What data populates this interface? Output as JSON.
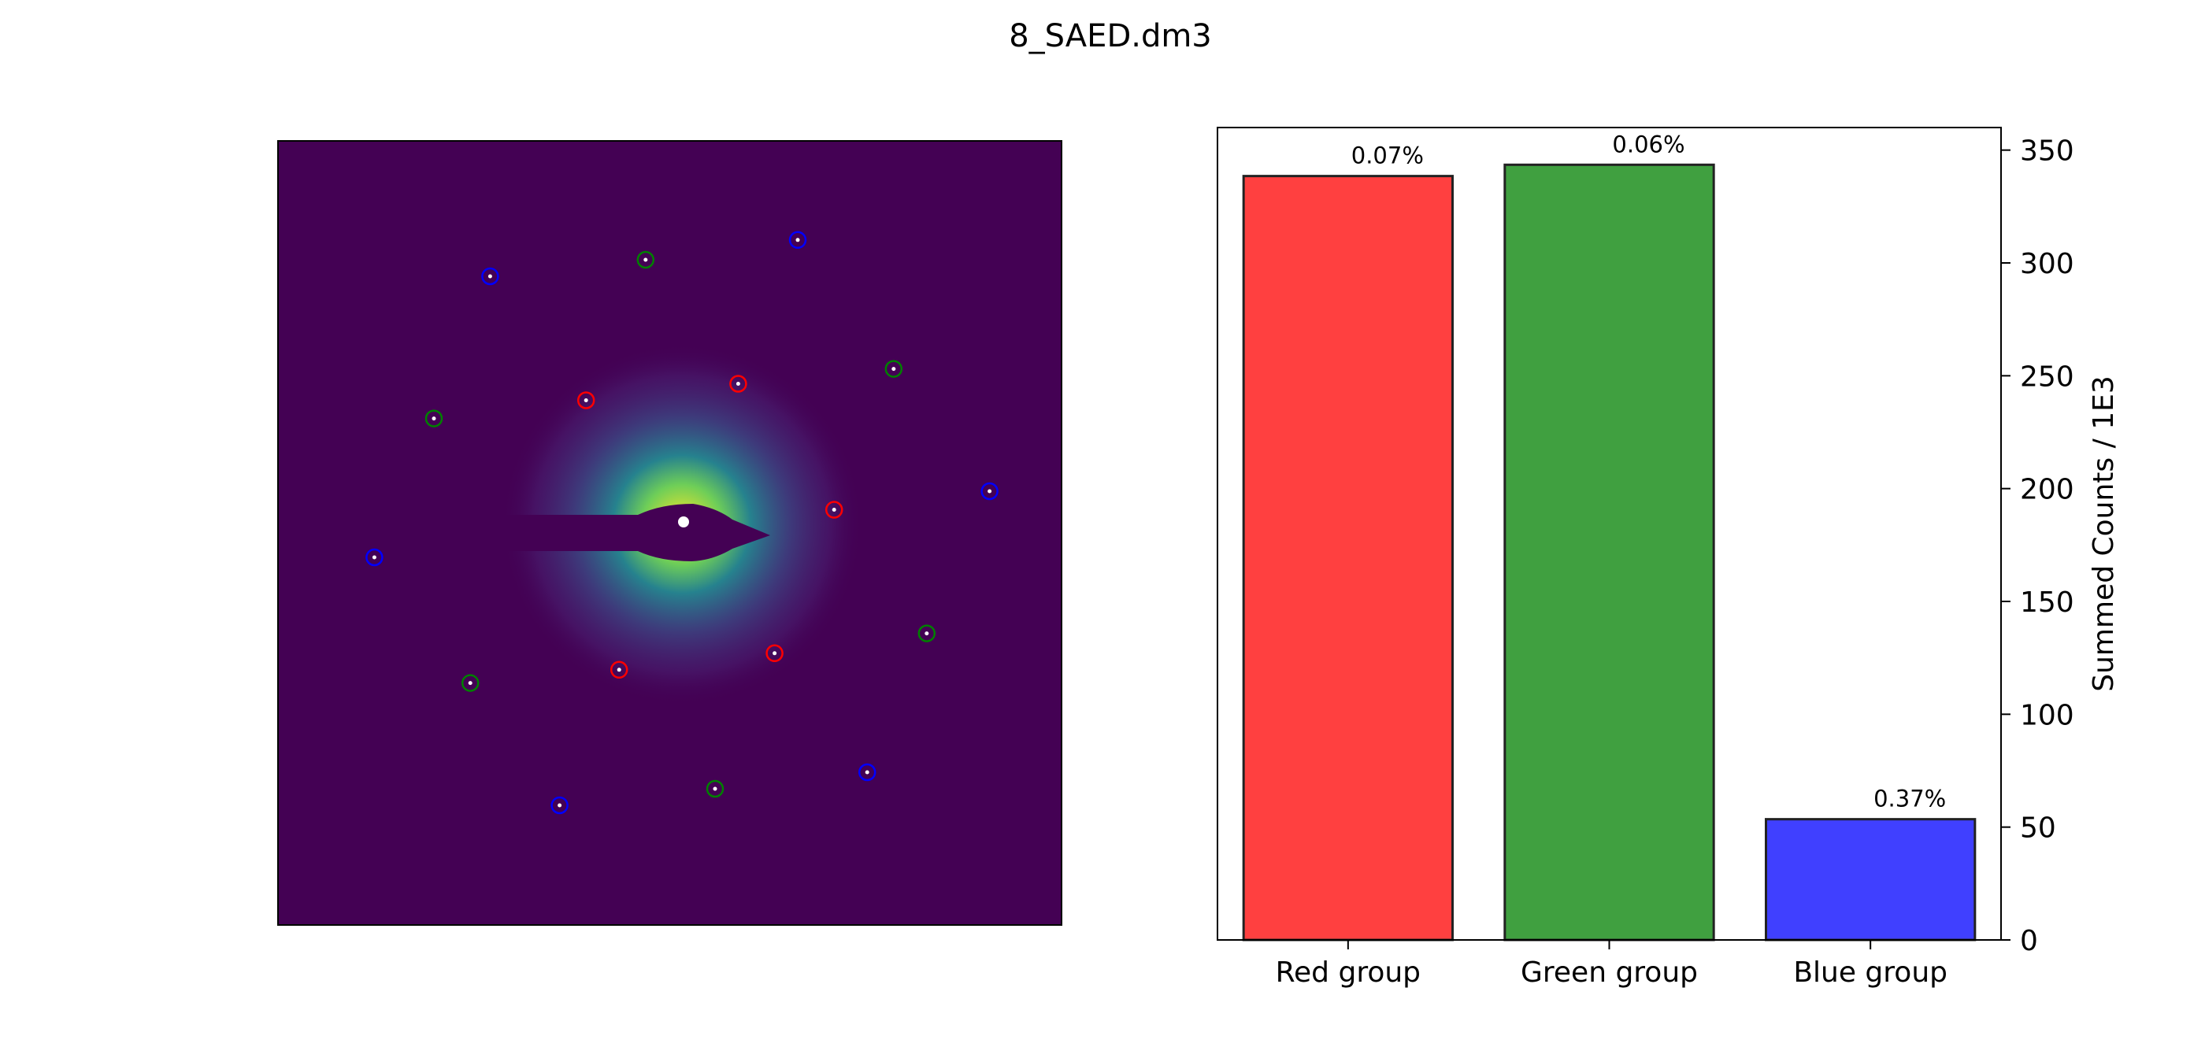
{
  "figure": {
    "title": "8_SAED.dm3"
  },
  "colors": {
    "background": "#440154",
    "halo_outer": "#31688e",
    "halo_mid": "#35b779",
    "halo_core": "#fde725",
    "beam_stop": "#440154",
    "direct_beam": "#ffffff",
    "red": "#ff0000",
    "green": "#008000",
    "blue": "#0000ff"
  },
  "diffraction_image": {
    "colormap": "viridis",
    "spot_groups": [
      {
        "name": "red",
        "color": "#ff0000",
        "spots": [
          [
            -0.29,
            0.375
          ],
          [
            0.17,
            0.425
          ],
          [
            0.46,
            0.044
          ],
          [
            0.28,
            -0.39
          ],
          [
            -0.19,
            -0.44
          ]
        ]
      },
      {
        "name": "green",
        "color": "#008000",
        "spots": [
          [
            -0.11,
            0.8
          ],
          [
            0.64,
            0.47
          ],
          [
            0.74,
            -0.33
          ],
          [
            0.1,
            -0.8
          ],
          [
            -0.64,
            -0.48
          ],
          [
            -0.75,
            0.32
          ]
        ]
      },
      {
        "name": "blue",
        "color": "#0000ff",
        "spots": [
          [
            -0.58,
            0.75
          ],
          [
            0.35,
            0.86
          ],
          [
            0.93,
            0.1
          ],
          [
            0.56,
            -0.75
          ],
          [
            -0.37,
            -0.85
          ],
          [
            -0.93,
            -0.1
          ]
        ]
      }
    ]
  },
  "chart_data": {
    "type": "bar",
    "categories": [
      "Red group",
      "Green group",
      "Blue group"
    ],
    "values": [
      338.5,
      343.5,
      53.5
    ],
    "bar_colors": [
      "#ff4040",
      "#40a040",
      "#4040ff"
    ],
    "annotations": [
      "0.07%",
      "0.06%",
      "0.37%"
    ],
    "ylabel": "Summed Counts / 1E3",
    "ylim": [
      0,
      360
    ],
    "yticks": [
      0,
      50,
      100,
      150,
      200,
      250,
      300,
      350
    ],
    "y_axis_side": "right",
    "grid": false
  }
}
